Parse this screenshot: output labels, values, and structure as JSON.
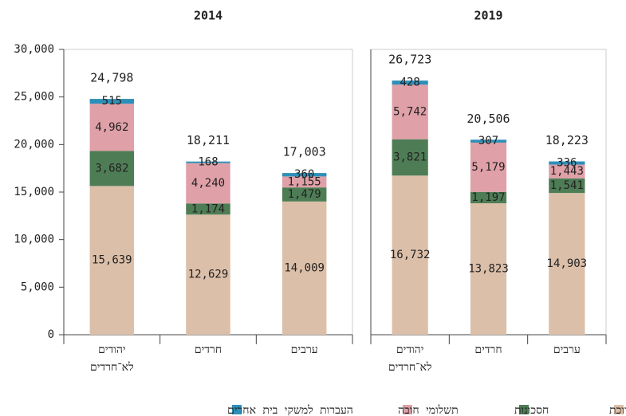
{
  "chart_data": [
    {
      "type": "bar",
      "stacked": true,
      "title": "2014",
      "categories": [
        "יהודים לא־חרדים",
        "חרדים",
        "ערבים"
      ],
      "ylim": [
        0,
        30000
      ],
      "yticks": [
        0,
        {
          "value": 5000,
          "label": "5,000"
        },
        {
          "value": 10000,
          "label": "10,000"
        },
        {
          "value": 15000,
          "label": "15,000"
        },
        {
          "value": 20000,
          "label": "20,000"
        },
        {
          "value": 25000,
          "label": "25,000"
        },
        {
          "value": 30000,
          "label": "30,000"
        }
      ],
      "series": [
        {
          "name": "הוצאות לתצרוכת",
          "color": "#dcbfa9",
          "values": [
            15639,
            12629,
            14009
          ],
          "value_labels": [
            "15,639",
            "12,629",
            "14,009"
          ]
        },
        {
          "name": "חסכונות",
          "color": "#4e7d55",
          "values": [
            3682,
            1174,
            1479
          ],
          "value_labels": [
            "3,682",
            "1,174",
            "1,479"
          ]
        },
        {
          "name": "תשלומי חובה",
          "color": "#e0a0a8",
          "values": [
            4962,
            4240,
            1155
          ],
          "value_labels": [
            "4,962",
            "4,240",
            "1,155"
          ]
        },
        {
          "name": "העברות למשקי בית אחרים",
          "color": "#2e8fb8",
          "values": [
            515,
            168,
            360
          ],
          "value_labels": [
            "515",
            "168",
            "360"
          ]
        }
      ],
      "totals": [
        24798,
        18211,
        17003
      ],
      "total_labels": [
        "24,798",
        "18,211",
        "17,003"
      ]
    },
    {
      "type": "bar",
      "stacked": true,
      "title": "2019",
      "categories": [
        "יהודים לא־חרדים",
        "חרדים",
        "ערבים"
      ],
      "ylim": [
        0,
        30000
      ],
      "series": [
        {
          "color": "#dcbfa9",
          "values": [
            16732,
            13823,
            14903
          ],
          "value_labels": [
            "16,732",
            "13,823",
            "14,903"
          ]
        },
        {
          "color": "#4e7d55",
          "values": [
            3821,
            1197,
            1541
          ],
          "value_labels": [
            "3,821",
            "1,197",
            "1,541"
          ]
        },
        {
          "color": "#e0a0a8",
          "values": [
            5742,
            5179,
            1443
          ],
          "value_labels": [
            "5,742",
            "5,179",
            "1,443"
          ]
        },
        {
          "color": "#2e8fb8",
          "values": [
            428,
            307,
            336
          ],
          "value_labels": [
            "428",
            "307",
            "336"
          ]
        }
      ],
      "totals": [
        26723,
        20506,
        18223
      ],
      "total_labels": [
        "26,723",
        "20,506",
        "18,223"
      ]
    }
  ]
}
